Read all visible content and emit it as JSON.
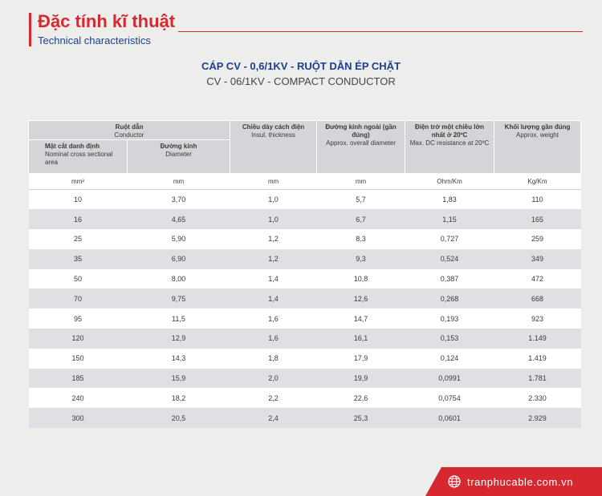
{
  "header": {
    "title_vi": "Đặc tính kĩ thuật",
    "title_en": "Technical characteristics"
  },
  "product": {
    "title_vi": "CÁP CV - 0,6/1KV - RUỘT DẪN ÉP CHẶT",
    "title_en": "CV - 06/1KV - COMPACT CONDUCTOR"
  },
  "table": {
    "conductor_group": {
      "vi": "Ruột dẫn",
      "en": "Conductor"
    },
    "columns": [
      {
        "vi": "Mặt cắt danh định",
        "en": "Nominal cross sectional area"
      },
      {
        "vi": "Đường kính",
        "en": "Diameter"
      },
      {
        "vi": "Chiều dày cách điện",
        "en": "Insul. thickness"
      },
      {
        "vi": "Đường kính ngoài (gần đúng)",
        "en": "Approx. overall diameter"
      },
      {
        "vi": "Điện trở một chiều lớn nhất ở 20ºC",
        "en": "Max. DC resistance at 20ºC"
      },
      {
        "vi": "Khối lượng gần đúng",
        "en": "Approx. weight"
      }
    ],
    "units": [
      "mm²",
      "mm",
      "mm",
      "mm",
      "Ohm/Km",
      "Kg/Km"
    ],
    "rows": [
      [
        "10",
        "3,70",
        "1,0",
        "5,7",
        "1,83",
        "110"
      ],
      [
        "16",
        "4,65",
        "1,0",
        "6,7",
        "1,15",
        "165"
      ],
      [
        "25",
        "5,90",
        "1,2",
        "8,3",
        "0,727",
        "259"
      ],
      [
        "35",
        "6,90",
        "1,2",
        "9,3",
        "0,524",
        "349"
      ],
      [
        "50",
        "8,00",
        "1,4",
        "10,8",
        "0,387",
        "472"
      ],
      [
        "70",
        "9,75",
        "1,4",
        "12,6",
        "0,268",
        "668"
      ],
      [
        "95",
        "11,5",
        "1,6",
        "14,7",
        "0,193",
        "923"
      ],
      [
        "120",
        "12,9",
        "1,6",
        "16,1",
        "0,153",
        "1.149"
      ],
      [
        "150",
        "14,3",
        "1,8",
        "17,9",
        "0,124",
        "1.419"
      ],
      [
        "185",
        "15,9",
        "2,0",
        "19,9",
        "0,0991",
        "1.781"
      ],
      [
        "240",
        "18,2",
        "2,2",
        "22,6",
        "0,0754",
        "2.330"
      ],
      [
        "300",
        "20,5",
        "2,4",
        "25,3",
        "0,0601",
        "2.929"
      ]
    ]
  },
  "footer": {
    "url": "tranphucable.com.vn",
    "icon": "globe-icon"
  },
  "colors": {
    "brand_red": "#d7282f",
    "brand_blue": "#1c3f8f",
    "header_gray": "#d4d5d9",
    "stripe_gray": "#dfe0e4",
    "background": "#ededeb"
  }
}
